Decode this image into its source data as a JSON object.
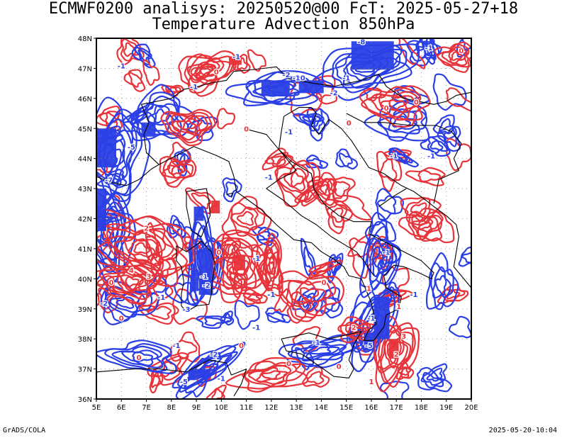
{
  "title": {
    "line1": "ECMWF0200 analisys: 20250520@00 FcT: 2025-05-27+18",
    "line2": "Temperature Advection 850hPa"
  },
  "map": {
    "lon_range": [
      5,
      20
    ],
    "lat_range": [
      36,
      48
    ],
    "lon_ticks": [
      "5E",
      "6E",
      "7E",
      "8E",
      "9E",
      "10E",
      "11E",
      "12E",
      "13E",
      "14E",
      "15E",
      "16E",
      "17E",
      "18E",
      "19E",
      "20E"
    ],
    "lat_ticks": [
      "48N",
      "47N",
      "46N",
      "45N",
      "44N",
      "43N",
      "42N",
      "41N",
      "40N",
      "39N",
      "38N",
      "37N",
      "36N"
    ],
    "grid": "dotted",
    "colors": {
      "warm_advection": "#e8333a",
      "cold_advection": "#2a3fe6",
      "coastline": "#000000",
      "grid": "#888888"
    },
    "contour_labels": [
      {
        "text": "-1",
        "lon": 6.0,
        "lat": 47.0,
        "sign": "cold"
      },
      {
        "text": "-1",
        "lon": 10.6,
        "lat": 47.3,
        "sign": "cold"
      },
      {
        "text": "-2",
        "lon": 12.6,
        "lat": 46.7,
        "sign": "cold"
      },
      {
        "text": "-10",
        "lon": 13.1,
        "lat": 46.6,
        "sign": "cold"
      },
      {
        "text": "-2",
        "lon": 14.5,
        "lat": 46.1,
        "sign": "cold"
      },
      {
        "text": "-1",
        "lon": 15.0,
        "lat": 46.6,
        "sign": "cold"
      },
      {
        "text": "-8",
        "lon": 15.6,
        "lat": 47.8,
        "sign": "cold"
      },
      {
        "text": "-1",
        "lon": 18.3,
        "lat": 47.6,
        "sign": "cold"
      },
      {
        "text": "-1",
        "lon": 12.7,
        "lat": 44.8,
        "sign": "cold"
      },
      {
        "text": "-1",
        "lon": 16.9,
        "lat": 44.0,
        "sign": "cold"
      },
      {
        "text": "-1",
        "lon": 18.4,
        "lat": 44.0,
        "sign": "cold"
      },
      {
        "text": "-1",
        "lon": 11.9,
        "lat": 43.3,
        "sign": "cold"
      },
      {
        "text": "-1",
        "lon": 8.9,
        "lat": 46.3,
        "sign": "cold"
      },
      {
        "text": "-5",
        "lon": 6.4,
        "lat": 44.3,
        "sign": "cold"
      },
      {
        "text": "-7",
        "lon": 5.5,
        "lat": 43.2,
        "sign": "cold"
      },
      {
        "text": "-1",
        "lon": 9.3,
        "lat": 40.0,
        "sign": "cold"
      },
      {
        "text": "-2",
        "lon": 9.4,
        "lat": 39.7,
        "sign": "cold"
      },
      {
        "text": "-2",
        "lon": 5.3,
        "lat": 39.1,
        "sign": "cold"
      },
      {
        "text": "-1",
        "lon": 7.6,
        "lat": 39.3,
        "sign": "cold"
      },
      {
        "text": "-3",
        "lon": 8.6,
        "lat": 38.9,
        "sign": "cold"
      },
      {
        "text": "-1",
        "lon": 8.2,
        "lat": 37.7,
        "sign": "cold"
      },
      {
        "text": "-2",
        "lon": 9.7,
        "lat": 37.4,
        "sign": "cold"
      },
      {
        "text": "-1",
        "lon": 11.4,
        "lat": 38.3,
        "sign": "cold"
      },
      {
        "text": "-1",
        "lon": 13.8,
        "lat": 37.8,
        "sign": "cold"
      },
      {
        "text": "-5",
        "lon": 15.9,
        "lat": 37.7,
        "sign": "cold"
      },
      {
        "text": "-1",
        "lon": 16.0,
        "lat": 38.6,
        "sign": "cold"
      },
      {
        "text": "-1",
        "lon": 16.6,
        "lat": 40.8,
        "sign": "cold"
      },
      {
        "text": "-1",
        "lon": 17.7,
        "lat": 39.4,
        "sign": "cold"
      },
      {
        "text": "-5",
        "lon": 8.5,
        "lat": 36.5,
        "sign": "cold"
      },
      {
        "text": "-1",
        "lon": 10.0,
        "lat": 36.6,
        "sign": "cold"
      },
      {
        "text": "-1",
        "lon": 11.4,
        "lat": 40.6,
        "sign": "cold"
      },
      {
        "text": "-1",
        "lon": 12.0,
        "lat": 39.4,
        "sign": "cold"
      },
      {
        "text": "0",
        "lon": 6.0,
        "lat": 38.6,
        "sign": "warm"
      },
      {
        "text": "0",
        "lon": 5.6,
        "lat": 39.8,
        "sign": "warm"
      },
      {
        "text": "0",
        "lon": 6.7,
        "lat": 37.3,
        "sign": "warm"
      },
      {
        "text": "0",
        "lon": 9.8,
        "lat": 46.8,
        "sign": "warm"
      },
      {
        "text": "0",
        "lon": 11.0,
        "lat": 44.9,
        "sign": "warm"
      },
      {
        "text": "0",
        "lon": 9.9,
        "lat": 40.8,
        "sign": "warm"
      },
      {
        "text": "0",
        "lon": 15.1,
        "lat": 45.1,
        "sign": "warm"
      },
      {
        "text": "0",
        "lon": 16.6,
        "lat": 45.6,
        "sign": "warm"
      },
      {
        "text": "0",
        "lon": 17.8,
        "lat": 45.8,
        "sign": "warm"
      },
      {
        "text": "0",
        "lon": 19.6,
        "lat": 47.5,
        "sign": "warm"
      },
      {
        "text": "0",
        "lon": 14.1,
        "lat": 39.8,
        "sign": "warm"
      },
      {
        "text": "0",
        "lon": 14.7,
        "lat": 37.0,
        "sign": "warm"
      },
      {
        "text": "0",
        "lon": 12.7,
        "lat": 37.1,
        "sign": "warm"
      },
      {
        "text": "0",
        "lon": 10.8,
        "lat": 37.7,
        "sign": "warm"
      },
      {
        "text": "2",
        "lon": 7.0,
        "lat": 41.6,
        "sign": "warm"
      },
      {
        "text": "4",
        "lon": 6.4,
        "lat": 40.2,
        "sign": "warm"
      },
      {
        "text": "3",
        "lon": 7.1,
        "lat": 40.0,
        "sign": "warm"
      },
      {
        "text": "2",
        "lon": 15.3,
        "lat": 38.3,
        "sign": "warm"
      },
      {
        "text": "1",
        "lon": 15.9,
        "lat": 39.6,
        "sign": "warm"
      },
      {
        "text": "3",
        "lon": 17.3,
        "lat": 38.0,
        "sign": "warm"
      },
      {
        "text": "2",
        "lon": 17.0,
        "lat": 37.4,
        "sign": "warm"
      },
      {
        "text": "1",
        "lon": 17.1,
        "lat": 39.0,
        "sign": "warm"
      },
      {
        "text": "1",
        "lon": 16.0,
        "lat": 36.5,
        "sign": "warm"
      }
    ]
  },
  "footer": {
    "left": "GrADS/COLA",
    "right": "2025-05-20-10:04"
  }
}
